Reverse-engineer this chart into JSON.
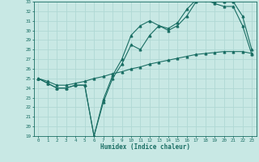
{
  "xlabel": "Humidex (Indice chaleur)",
  "ylabel": "",
  "background_color": "#c8e8e4",
  "grid_color": "#b0d8d4",
  "line_color": "#1a6e64",
  "xlim": [
    -0.5,
    23.5
  ],
  "ylim": [
    19,
    33
  ],
  "xticks": [
    0,
    1,
    2,
    3,
    4,
    5,
    6,
    7,
    8,
    9,
    10,
    11,
    12,
    13,
    14,
    15,
    16,
    17,
    18,
    19,
    20,
    21,
    22,
    23
  ],
  "yticks": [
    19,
    20,
    21,
    22,
    23,
    24,
    25,
    26,
    27,
    28,
    29,
    30,
    31,
    32,
    33
  ],
  "curve1_x": [
    0,
    1,
    2,
    3,
    4,
    5,
    6,
    7,
    8,
    9,
    10,
    11,
    12,
    13,
    14,
    15,
    16,
    17,
    18,
    19,
    20,
    21,
    22,
    23
  ],
  "curve1_y": [
    25.0,
    24.5,
    24.0,
    24.0,
    24.3,
    24.3,
    19.0,
    22.5,
    25.0,
    26.5,
    28.5,
    28.0,
    29.5,
    30.5,
    30.0,
    30.5,
    31.5,
    33.0,
    33.2,
    32.8,
    32.5,
    32.5,
    30.5,
    27.5
  ],
  "curve2_x": [
    0,
    1,
    2,
    3,
    4,
    5,
    6,
    7,
    8,
    9,
    10,
    11,
    12,
    13,
    14,
    15,
    16,
    17,
    18,
    19,
    20,
    21,
    22,
    23
  ],
  "curve2_y": [
    25.0,
    24.5,
    24.0,
    24.0,
    24.3,
    24.3,
    19.0,
    22.8,
    25.3,
    27.0,
    29.5,
    30.5,
    31.0,
    30.5,
    30.2,
    30.8,
    32.2,
    33.2,
    33.5,
    33.0,
    33.0,
    33.0,
    31.5,
    28.0
  ],
  "curve3_x": [
    0,
    1,
    2,
    3,
    4,
    5,
    6,
    7,
    8,
    9,
    10,
    11,
    12,
    13,
    14,
    15,
    16,
    17,
    18,
    19,
    20,
    21,
    22,
    23
  ],
  "curve3_y": [
    25.0,
    24.7,
    24.3,
    24.3,
    24.5,
    24.7,
    25.0,
    25.2,
    25.5,
    25.7,
    26.0,
    26.2,
    26.5,
    26.7,
    26.9,
    27.1,
    27.3,
    27.5,
    27.6,
    27.7,
    27.8,
    27.8,
    27.8,
    27.6
  ]
}
